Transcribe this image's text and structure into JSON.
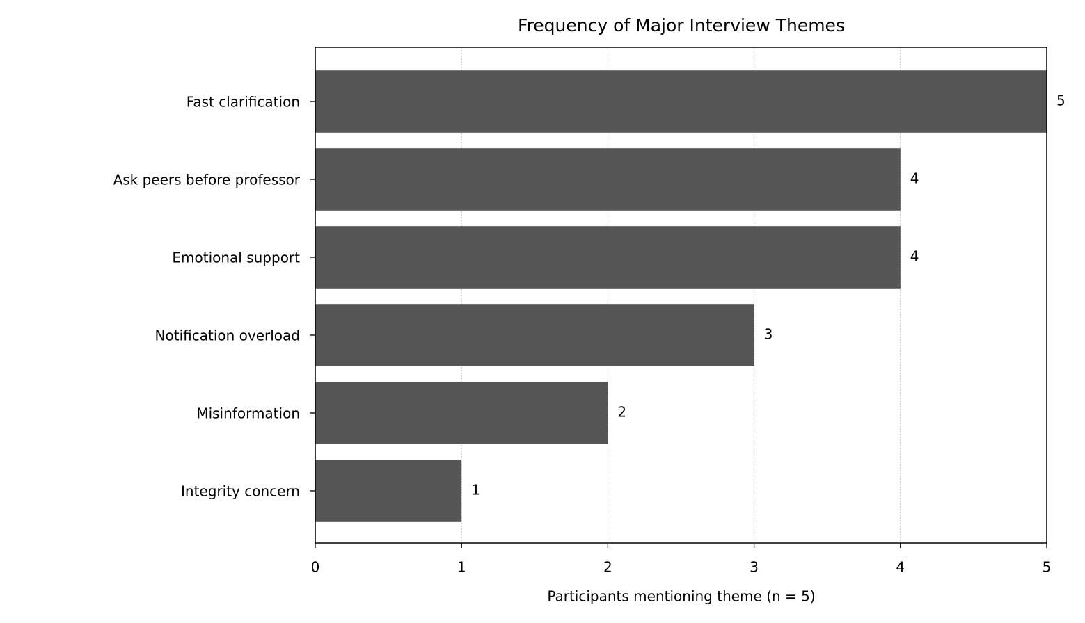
{
  "chart_data": {
    "type": "barh",
    "title": "Frequency of Major Interview Themes",
    "x_label": "Participants mentioning theme (n = 5)",
    "categories": [
      "Fast clarification",
      "Ask peers before professor",
      "Emotional support",
      "Notification overload",
      "Misinformation",
      "Integrity concern"
    ],
    "values": [
      5,
      4,
      4,
      3,
      2,
      1
    ],
    "color": "#555555",
    "xlim": [
      0,
      5
    ],
    "xticks": [
      0,
      1,
      2,
      3,
      4,
      5
    ],
    "grid": true
  }
}
